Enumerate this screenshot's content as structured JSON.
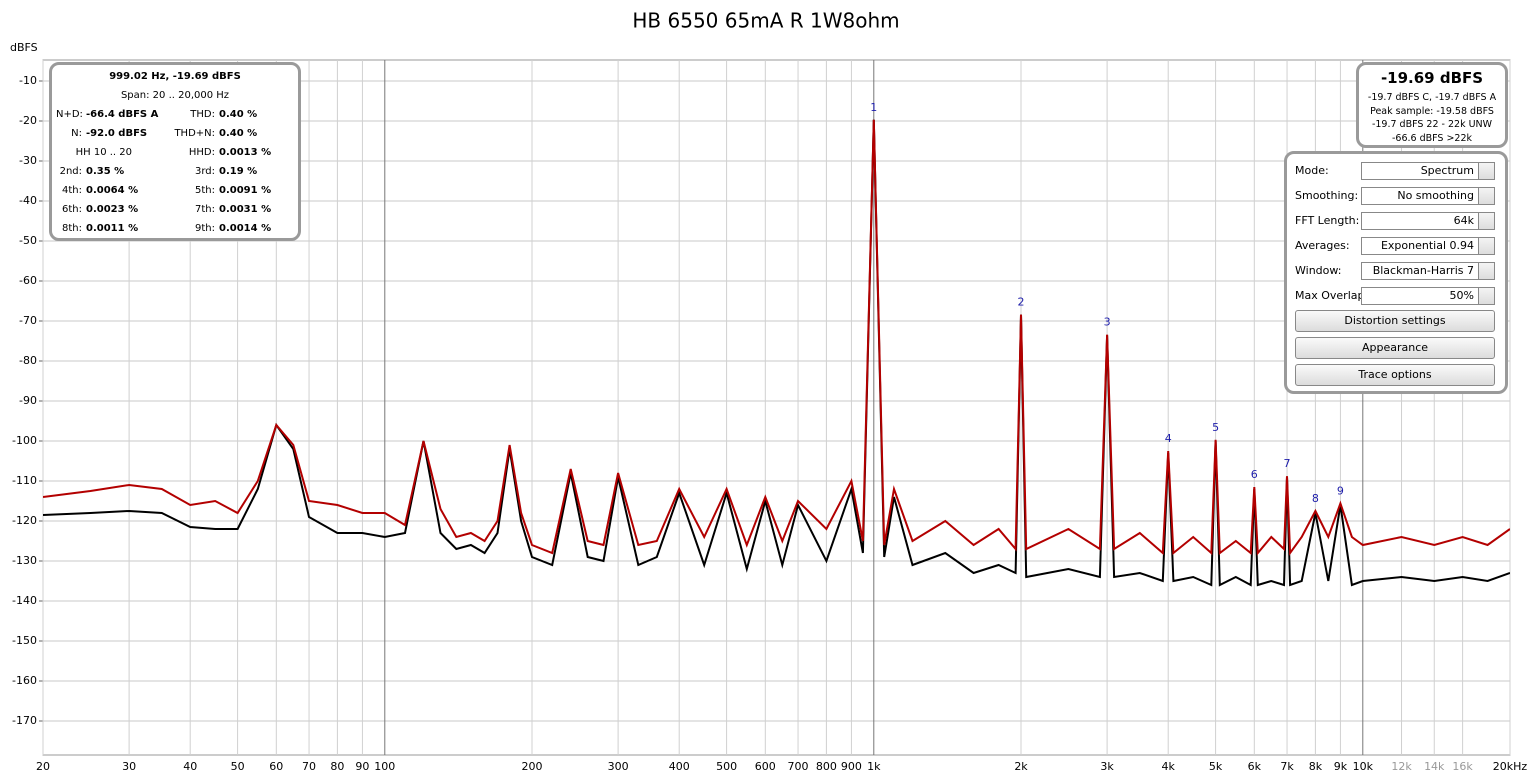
{
  "chart_data": {
    "type": "line",
    "title": "HB 6550 65mA R 1W8ohm",
    "y_label": "dBFS",
    "xscale": "log",
    "grid": true,
    "xlim": [
      20,
      20000
    ],
    "ylim": [
      -178.5,
      -4.75
    ],
    "xticks": [
      20,
      30,
      40,
      50,
      60,
      70,
      80,
      90,
      100,
      200,
      300,
      400,
      500,
      600,
      700,
      800,
      900,
      {
        "value": 1000,
        "label": "1k"
      },
      {
        "value": 2000,
        "label": "2k"
      },
      {
        "value": 3000,
        "label": "3k"
      },
      {
        "value": 4000,
        "label": "4k"
      },
      {
        "value": 5000,
        "label": "5k"
      },
      {
        "value": 6000,
        "label": "6k"
      },
      {
        "value": 7000,
        "label": "7k"
      },
      {
        "value": 8000,
        "label": "8k"
      },
      {
        "value": 9000,
        "label": "9k"
      },
      {
        "value": 10000,
        "label": "10k"
      },
      {
        "value": 12000,
        "label": "12k"
      },
      {
        "value": 14000,
        "label": "14k"
      },
      {
        "value": 16000,
        "label": "16k"
      },
      {
        "value": 20000,
        "label": "20kHz"
      }
    ],
    "yticks": [
      -10,
      -20,
      -30,
      -40,
      -50,
      -60,
      -70,
      -80,
      -90,
      -100,
      -110,
      -120,
      -130,
      -140,
      -150,
      -160,
      -170
    ],
    "x": [
      20,
      25,
      30,
      35,
      40,
      45,
      50,
      55,
      60,
      65,
      70,
      80,
      90,
      100,
      110,
      120,
      130,
      140,
      150,
      160,
      170,
      180,
      190,
      200,
      220,
      240,
      260,
      280,
      300,
      330,
      360,
      400,
      450,
      500,
      550,
      600,
      650,
      700,
      800,
      900,
      950,
      1000,
      1050,
      1100,
      1200,
      1400,
      1600,
      1800,
      1950,
      2000,
      2050,
      2500,
      2900,
      3000,
      3100,
      3500,
      3900,
      4000,
      4100,
      4500,
      4900,
      5000,
      5100,
      5500,
      5900,
      6000,
      6100,
      6500,
      6900,
      7000,
      7100,
      7500,
      8000,
      8500,
      9000,
      9500,
      10000,
      12000,
      14000,
      16000,
      18000,
      20000
    ],
    "series": [
      {
        "color": "#000000",
        "values": [
          -118.5,
          -118,
          -117.5,
          -118,
          -121.5,
          -122,
          -122,
          -112,
          -96,
          -102,
          -119,
          -123,
          -123,
          -124,
          -123,
          -100,
          -123,
          -127,
          -126,
          -128,
          -123,
          -102,
          -120,
          -129,
          -131,
          -108,
          -129,
          -130,
          -109,
          -131,
          -129,
          -113,
          -131,
          -113,
          -132,
          -115,
          -131,
          -116,
          -130,
          -112,
          -128,
          -19.7,
          -129,
          -114,
          -131,
          -128,
          -133,
          -131,
          -133,
          -68.4,
          -134,
          -132,
          -134,
          -73.6,
          -134,
          -133,
          -135,
          -103,
          -135,
          -134,
          -136,
          -100,
          -136,
          -134,
          -136,
          -112,
          -136,
          -135,
          -136,
          -109,
          -136,
          -135,
          -118,
          -135,
          -116,
          -136,
          -135,
          -134,
          -135,
          -134,
          -135,
          -133
        ]
      },
      {
        "color": "#b30000",
        "values": [
          -114,
          -112.5,
          -111,
          -112,
          -116,
          -115,
          -118,
          -110,
          -96,
          -101,
          -115,
          -116,
          -118,
          -118,
          -121,
          -100,
          -117,
          -124,
          -123,
          -125,
          -120,
          -101,
          -118,
          -126,
          -128,
          -107,
          -125,
          -126,
          -108,
          -126,
          -125,
          -112,
          -124,
          -112,
          -126,
          -114,
          -125,
          -115,
          -122,
          -110,
          -125,
          -19.7,
          -126,
          -112,
          -125,
          -120,
          -126,
          -122,
          -127,
          -68.4,
          -127,
          -122,
          -127,
          -73.4,
          -127,
          -123,
          -128,
          -102.5,
          -128,
          -124,
          -128,
          -99.7,
          -128,
          -125,
          -128,
          -111.5,
          -128,
          -124,
          -127,
          -108.8,
          -128,
          -124,
          -117.5,
          -124,
          -115.6,
          -124,
          -126,
          -124,
          -126,
          -124,
          -126,
          -122
        ]
      }
    ],
    "markers": [
      {
        "label": 1,
        "x": 1000,
        "y": -19.7
      },
      {
        "label": 2,
        "x": 2000,
        "y": -68.4
      },
      {
        "label": 3,
        "x": 3000,
        "y": -73.4
      },
      {
        "label": 4,
        "x": 4000,
        "y": -102.5
      },
      {
        "label": 5,
        "x": 5000,
        "y": -99.7
      },
      {
        "label": 6,
        "x": 6000,
        "y": -111.5
      },
      {
        "label": 7,
        "x": 7000,
        "y": -108.8
      },
      {
        "label": 8,
        "x": 8000,
        "y": -117.5
      },
      {
        "label": 9,
        "x": 9000,
        "y": -115.6
      }
    ]
  },
  "info_panel": {
    "header": "999.02 Hz, -19.69 dBFS",
    "span": "Span: 20 .. 20,000 Hz",
    "rows": [
      [
        [
          "N+D:",
          "-66.4 dBFS A"
        ],
        [
          "THD:",
          "0.40 %"
        ]
      ],
      [
        [
          "N:",
          "-92.0 dBFS"
        ],
        [
          "THD+N:",
          "0.40 %"
        ]
      ],
      [
        [
          "HH 10 .. 20"
        ],
        [
          "HHD:",
          "0.0013 %"
        ]
      ],
      [
        [
          "2nd:",
          "0.35 %"
        ],
        [
          "3rd:",
          "0.19 %"
        ]
      ],
      [
        [
          "4th:",
          "0.0064 %"
        ],
        [
          "5th:",
          "0.0091 %"
        ]
      ],
      [
        [
          "6th:",
          "0.0023 %"
        ],
        [
          "7th:",
          "0.0031 %"
        ]
      ],
      [
        [
          "8th:",
          "0.0011 %"
        ],
        [
          "9th:",
          "0.0014 %"
        ]
      ]
    ]
  },
  "readout": {
    "main": "-19.69 dBFS",
    "lines": [
      "-19.7 dBFS C, -19.7 dBFS A",
      "Peak sample: -19.58 dBFS",
      "-19.7 dBFS 22 - 22k UNW",
      "-66.6 dBFS >22k"
    ]
  },
  "controls": {
    "fields": [
      [
        "Mode:",
        "Spectrum"
      ],
      [
        "Smoothing:",
        "No  smoothing"
      ],
      [
        "FFT Length:",
        "64k"
      ],
      [
        "Averages:",
        "Exponential 0.94"
      ],
      [
        "Window:",
        "Blackman-Harris 7"
      ],
      [
        "Max Overlap:",
        "50%"
      ]
    ],
    "buttons": [
      "Distortion settings",
      "Appearance",
      "Trace options"
    ]
  }
}
